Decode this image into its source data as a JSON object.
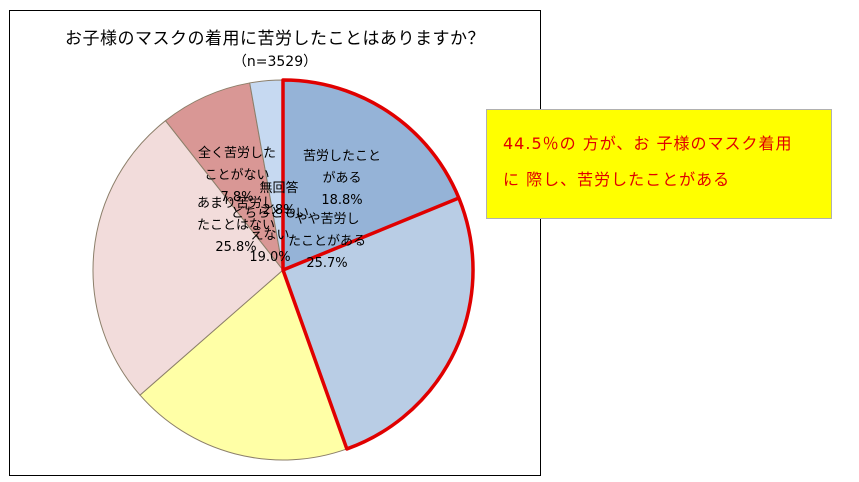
{
  "chart_data": {
    "type": "pie",
    "title": "お子様のマスクの着用に苦労したことはありますか？",
    "subtitle": "（n=3529）",
    "unit": "%",
    "slices": [
      {
        "label_lines": [
          "苦労したこと",
          "がある"
        ],
        "value": 18.8,
        "value_label": "18.8%",
        "color": "#95b3d7",
        "highlight": true
      },
      {
        "label_lines": [
          "やや苦労し",
          "たことがある"
        ],
        "value": 25.7,
        "value_label": "25.7%",
        "color": "#b9cde5",
        "highlight": true
      },
      {
        "label_lines": [
          "どちらともい",
          "えない"
        ],
        "value": 19.0,
        "value_label": "19.0%",
        "color": "#ffffa6",
        "highlight": false
      },
      {
        "label_lines": [
          "あまり苦労し",
          "たことはない"
        ],
        "value": 25.8,
        "value_label": "25.8%",
        "color": "#f2dcdb",
        "highlight": false
      },
      {
        "label_lines": [
          "全く苦労した",
          "ことがない"
        ],
        "value": 7.8,
        "value_label": "7.8%",
        "color": "#d99795",
        "highlight": false
      },
      {
        "label_lines": [
          "無回答"
        ],
        "value": 2.8,
        "value_label": "2.8%",
        "color": "#c6d9f1",
        "highlight": false
      }
    ],
    "start_angle_deg": 0,
    "direction": "clockwise",
    "highlight_color": "#e00000",
    "border_color": "#8c7f6a"
  },
  "callout": {
    "lines": [
      "44.5％の 方が、お 子様のマスク着用",
      "に 際し、苦労したことがある"
    ],
    "background": "#ffff00",
    "text_color": "#e00000"
  }
}
